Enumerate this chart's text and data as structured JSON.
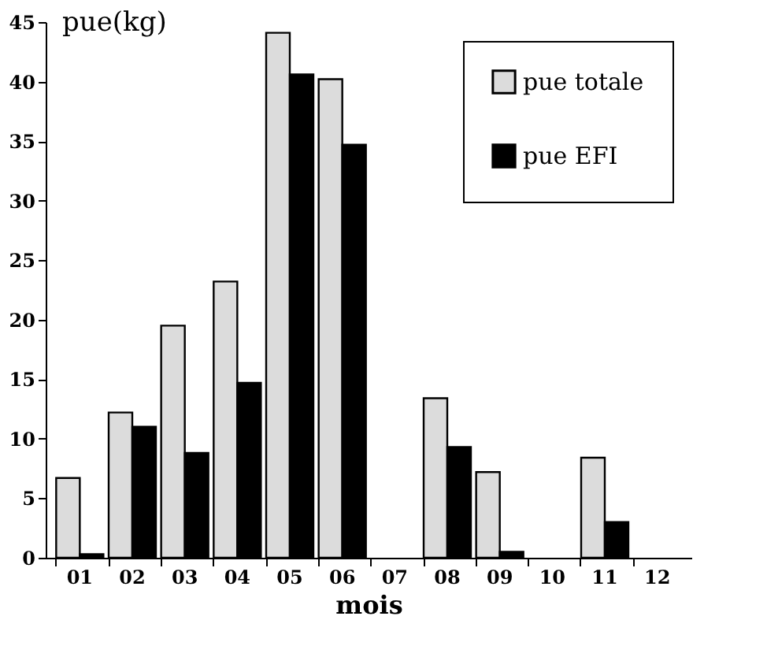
{
  "chart_data": {
    "type": "bar",
    "xlabel": "mois",
    "ylabel": "pue(kg)",
    "categories": [
      "01",
      "02",
      "03",
      "04",
      "05",
      "06",
      "07",
      "08",
      "09",
      "10",
      "11",
      "12"
    ],
    "series": [
      {
        "name": "pue totale",
        "color": "#dcdcdc",
        "values": [
          6.7,
          12.2,
          19.5,
          23.2,
          44.1,
          40.2,
          null,
          13.4,
          7.2,
          null,
          8.4,
          null
        ]
      },
      {
        "name": "pue EFI",
        "color": "#000000",
        "values": [
          0.3,
          11.0,
          8.8,
          14.7,
          40.6,
          34.7,
          null,
          9.3,
          0.5,
          null,
          3.0,
          null
        ]
      }
    ],
    "ylim": [
      0,
      45
    ],
    "yticks": [
      0,
      5,
      10,
      15,
      20,
      25,
      30,
      35,
      40,
      45
    ],
    "grid": false,
    "legend": "top right"
  }
}
